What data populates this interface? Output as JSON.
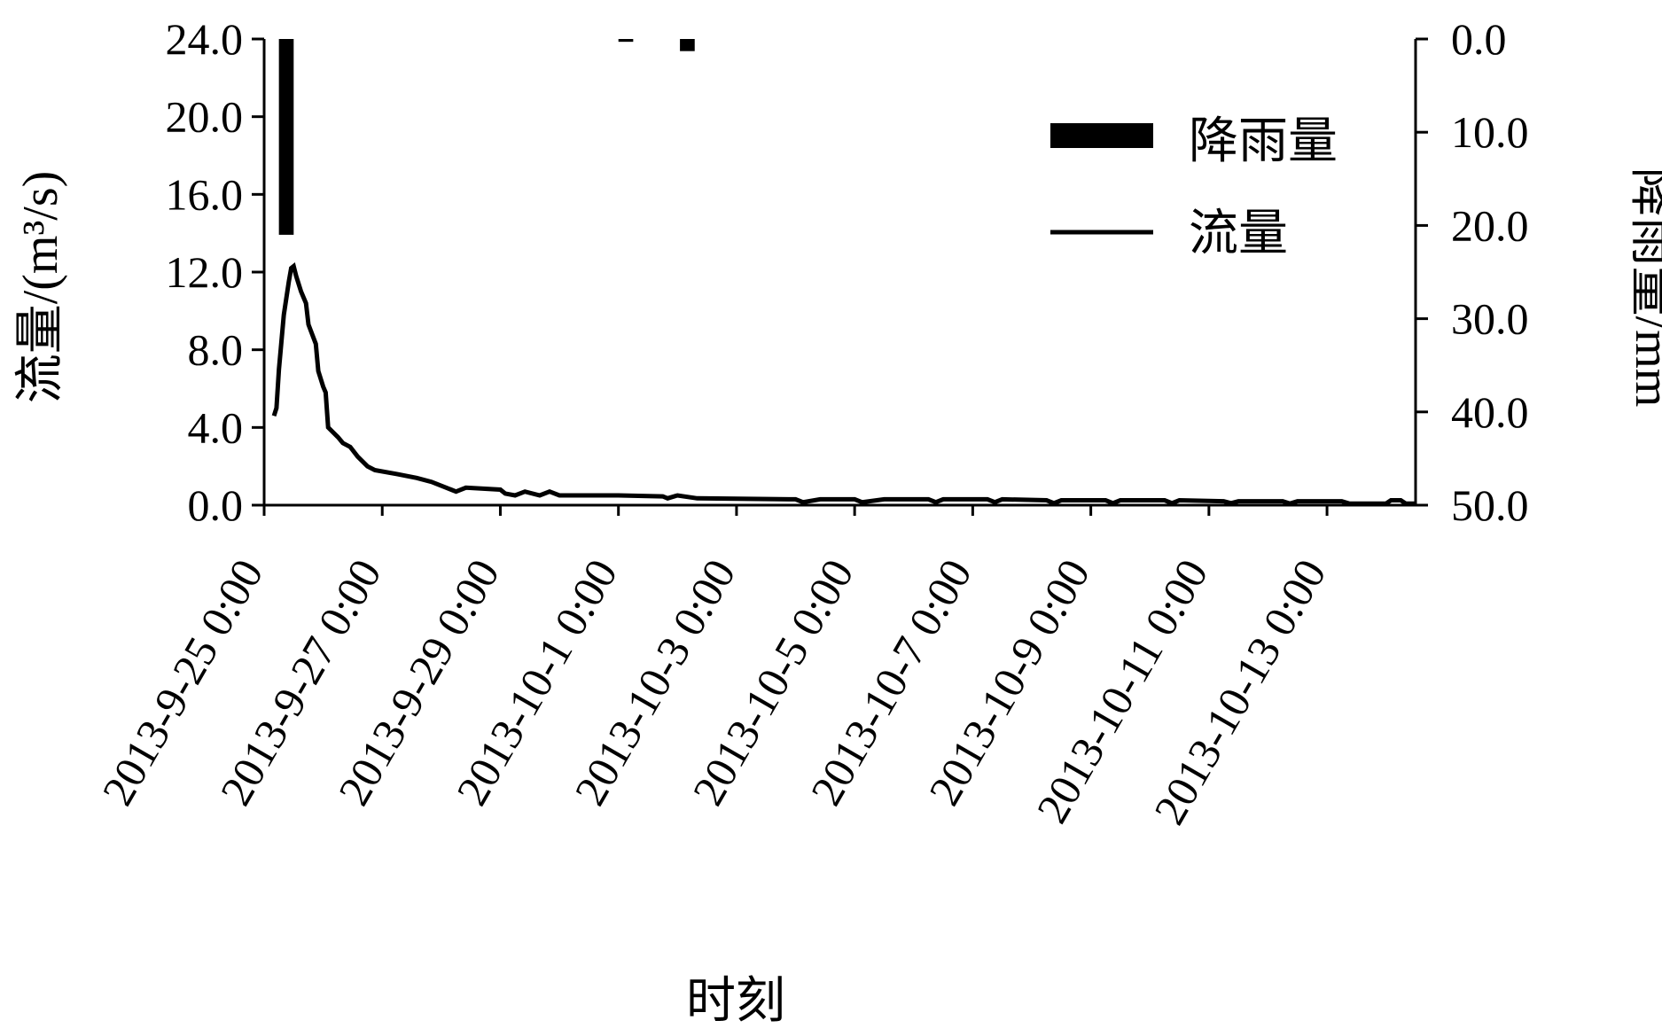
{
  "chart_data": {
    "type": "bar+line",
    "xlabel": "时刻",
    "ylabel_left": "流量/(m³/s)",
    "ylabel_right": "降雨量/mm",
    "left_axis": {
      "ylim": [
        0,
        24
      ],
      "ticks": [
        "0.0",
        "4.0",
        "8.0",
        "12.0",
        "16.0",
        "20.0",
        "24.0"
      ]
    },
    "right_axis": {
      "ylim": [
        0,
        50
      ],
      "inverted": true,
      "ticks": [
        "0.0",
        "10.0",
        "20.0",
        "30.0",
        "40.0",
        "50.0"
      ]
    },
    "x_range": [
      "2013-09-25 00:00",
      "2013-10-14 12:00"
    ],
    "x_ticks": [
      "2013-9-25 0:00",
      "2013-9-27 0:00",
      "2013-9-29 0:00",
      "2013-10-1 0:00",
      "2013-10-3 0:00",
      "2013-10-5 0:00",
      "2013-10-7 0:00",
      "2013-10-9 0:00",
      "2013-10-11 0:00",
      "2013-10-13 0:00"
    ],
    "grid": false,
    "legend": {
      "position": "top-right"
    },
    "series": [
      {
        "name": "降雨量",
        "type": "bar",
        "axis": "right",
        "color": "#000000",
        "data": [
          {
            "start": "2013-09-25 06:00",
            "end": "2013-09-25 12:00",
            "value": 21.0
          },
          {
            "start": "2013-10-01 00:00",
            "end": "2013-10-01 06:00",
            "value": 0.3
          },
          {
            "start": "2013-10-02 01:00",
            "end": "2013-10-02 07:00",
            "value": 1.3
          }
        ]
      },
      {
        "name": "流量",
        "type": "line",
        "axis": "left",
        "color": "#000000",
        "data": [
          [
            "2013-09-25 04:00",
            4.6
          ],
          [
            "2013-09-25 05:00",
            5.0
          ],
          [
            "2013-09-25 06:00",
            7.0
          ],
          [
            "2013-09-25 08:00",
            9.8
          ],
          [
            "2013-09-25 10:00",
            11.5
          ],
          [
            "2013-09-25 11:00",
            12.2
          ],
          [
            "2013-09-25 12:00",
            12.3
          ],
          [
            "2013-09-25 13:00",
            11.8
          ],
          [
            "2013-09-25 15:00",
            11.0
          ],
          [
            "2013-09-25 17:00",
            10.4
          ],
          [
            "2013-09-25 18:00",
            9.3
          ],
          [
            "2013-09-25 21:00",
            8.3
          ],
          [
            "2013-09-25 22:00",
            6.9
          ],
          [
            "2013-09-26 00:00",
            6.1
          ],
          [
            "2013-09-26 01:00",
            5.8
          ],
          [
            "2013-09-26 02:00",
            4.0
          ],
          [
            "2013-09-26 06:00",
            3.5
          ],
          [
            "2013-09-26 08:00",
            3.2
          ],
          [
            "2013-09-26 11:00",
            3.0
          ],
          [
            "2013-09-26 14:00",
            2.5
          ],
          [
            "2013-09-26 18:00",
            2.0
          ],
          [
            "2013-09-26 21:00",
            1.8
          ],
          [
            "2013-09-27 06:00",
            1.6
          ],
          [
            "2013-09-27 14:00",
            1.4
          ],
          [
            "2013-09-27 20:00",
            1.2
          ],
          [
            "2013-09-28 02:00",
            0.9
          ],
          [
            "2013-09-28 06:00",
            0.7
          ],
          [
            "2013-09-28 10:00",
            0.9
          ],
          [
            "2013-09-29 00:00",
            0.8
          ],
          [
            "2013-09-29 02:00",
            0.6
          ],
          [
            "2013-09-29 06:00",
            0.5
          ],
          [
            "2013-09-29 10:00",
            0.7
          ],
          [
            "2013-09-29 16:00",
            0.5
          ],
          [
            "2013-09-29 20:00",
            0.7
          ],
          [
            "2013-09-30 00:00",
            0.5
          ],
          [
            "2013-10-01 00:00",
            0.5
          ],
          [
            "2013-10-01 18:00",
            0.45
          ],
          [
            "2013-10-01 20:00",
            0.35
          ],
          [
            "2013-10-02 00:00",
            0.5
          ],
          [
            "2013-10-02 08:00",
            0.35
          ],
          [
            "2013-10-04 00:00",
            0.3
          ],
          [
            "2013-10-04 03:00",
            0.15
          ],
          [
            "2013-10-04 10:00",
            0.3
          ],
          [
            "2013-10-05 00:00",
            0.3
          ],
          [
            "2013-10-05 03:00",
            0.15
          ],
          [
            "2013-10-05 12:00",
            0.3
          ],
          [
            "2013-10-06 06:00",
            0.3
          ],
          [
            "2013-10-06 09:00",
            0.15
          ],
          [
            "2013-10-06 12:00",
            0.3
          ],
          [
            "2013-10-07 06:00",
            0.3
          ],
          [
            "2013-10-07 09:00",
            0.15
          ],
          [
            "2013-10-07 12:00",
            0.3
          ],
          [
            "2013-10-08 06:00",
            0.25
          ],
          [
            "2013-10-08 09:00",
            0.1
          ],
          [
            "2013-10-08 12:00",
            0.25
          ],
          [
            "2013-10-09 06:00",
            0.25
          ],
          [
            "2013-10-09 09:00",
            0.1
          ],
          [
            "2013-10-09 12:00",
            0.25
          ],
          [
            "2013-10-10 06:00",
            0.25
          ],
          [
            "2013-10-10 09:00",
            0.1
          ],
          [
            "2013-10-10 12:00",
            0.25
          ],
          [
            "2013-10-11 06:00",
            0.2
          ],
          [
            "2013-10-11 09:00",
            0.1
          ],
          [
            "2013-10-11 12:00",
            0.2
          ],
          [
            "2013-10-12 06:00",
            0.2
          ],
          [
            "2013-10-12 09:00",
            0.08
          ],
          [
            "2013-10-12 12:00",
            0.2
          ],
          [
            "2013-10-13 06:00",
            0.2
          ],
          [
            "2013-10-13 09:00",
            0.08
          ],
          [
            "2013-10-13 12:00",
            0.08
          ],
          [
            "2013-10-14 00:00",
            0.08
          ],
          [
            "2013-10-14 02:00",
            0.25
          ],
          [
            "2013-10-14 06:00",
            0.25
          ],
          [
            "2013-10-14 08:00",
            0.08
          ],
          [
            "2013-10-14 12:00",
            0.08
          ]
        ]
      }
    ]
  }
}
